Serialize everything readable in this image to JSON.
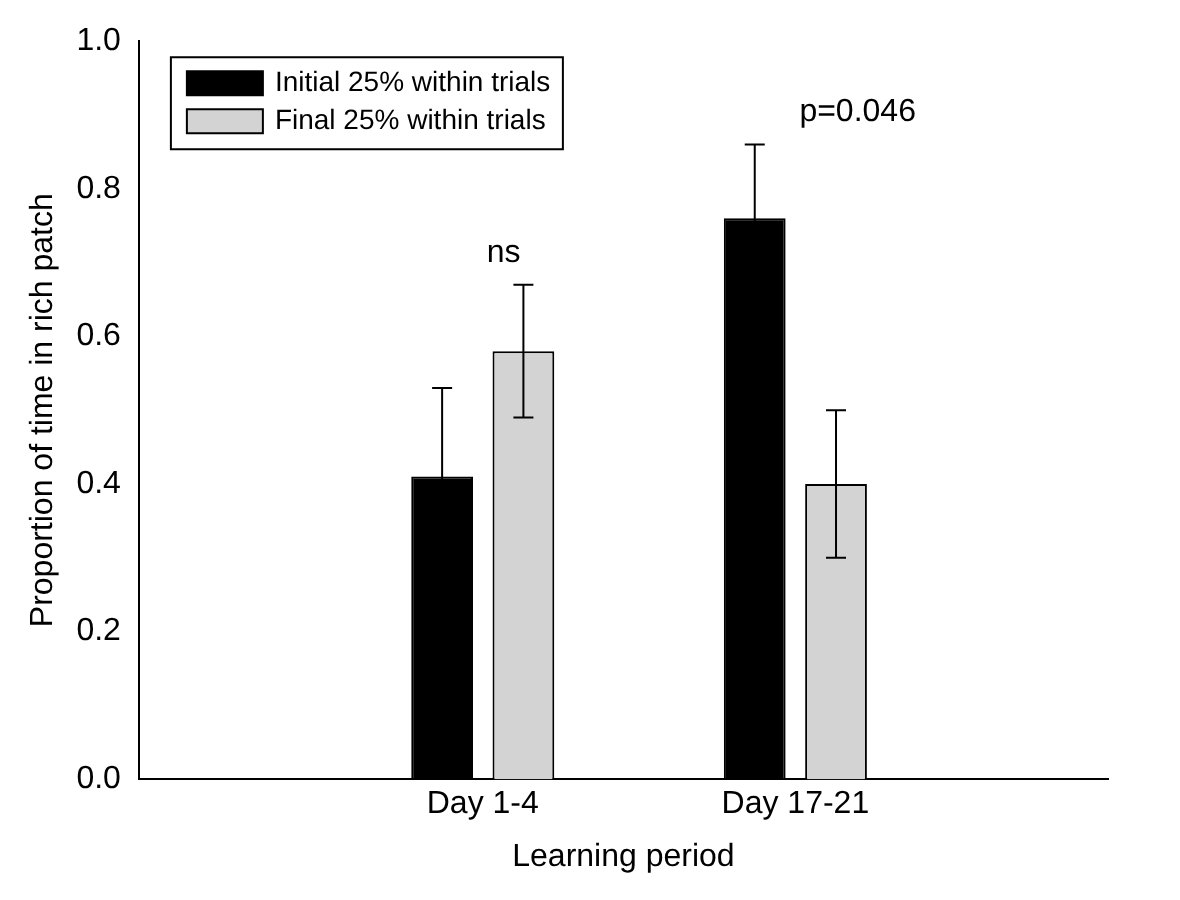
{
  "chart_data": {
    "type": "bar",
    "xlabel": "Learning period",
    "ylabel": "Proportion of time in rich patch",
    "categories": [
      "Day 1-4",
      "Day 17-21"
    ],
    "series": [
      {
        "name": "Initial 25% within trials",
        "color": "#000000",
        "values": [
          0.41,
          0.76
        ],
        "errors": [
          0.12,
          0.1
        ]
      },
      {
        "name": "Final 25% within trials",
        "color": "#d3d3d3",
        "values": [
          0.58,
          0.4
        ],
        "errors": [
          0.09,
          0.1
        ]
      }
    ],
    "ylim": [
      0,
      1
    ],
    "yticks": [
      {
        "value": 0,
        "label": "0.0"
      },
      0.2,
      0.4,
      0.6,
      0.8,
      {
        "value": 1,
        "label": "1.0"
      }
    ],
    "annotations": [
      "ns",
      "p=0.046"
    ],
    "legend": "top left",
    "grid": false
  }
}
